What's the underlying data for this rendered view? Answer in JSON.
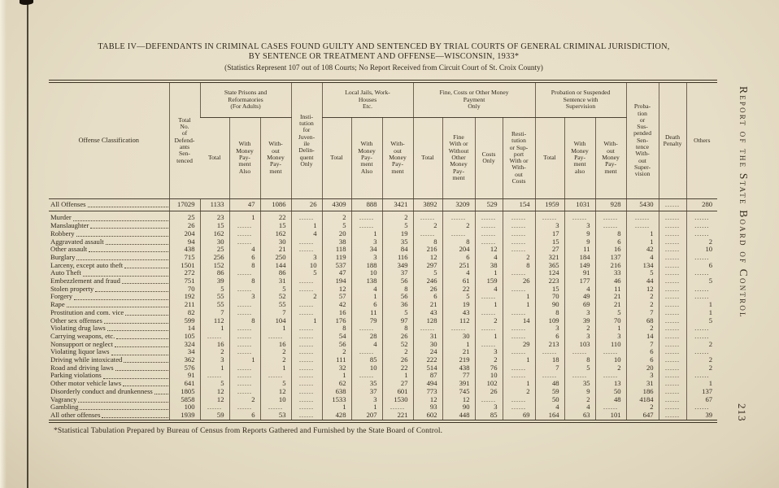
{
  "page": {
    "title_line1": "TABLE IV—DEFENDANTS IN CRIMINAL CASES FOUND GUILTY AND SENTENCED BY TRIAL COURTS OF GENERAL CRIMINAL JURISDICTION,",
    "title_line2": "BY SENTENCE OR TREATMENT AND OFFENSE—WISCONSIN, 1933*",
    "subtitle": "(Statistics Represent 107 out of 108 Courts; No Report Received from Circuit Court of St. Croix County)",
    "footnote": "*Statistical Tabulation Prepared by Bureau of Census from Reports Gathered and Furnished by the State Board of Control.",
    "running_head": "Report of the State Board of Control",
    "page_number": "213"
  },
  "colors": {
    "paper": "#e8dfca",
    "ink": "#32291c",
    "rule": "#4e4433"
  },
  "header": {
    "offense": "Offense Classification",
    "total_no": "Total\nNo.\nof\nDefend-\nants\nSen-\ntenced",
    "group_prisons": "State Prisons and\nReformatories\n(For Adults)",
    "juvenile": "Insti-\ntution\nfor\nJuven-\nile\nDelin-\nquent\nOnly",
    "group_jails": "Local Jails, Work-\nHouses\nEtc.",
    "group_fine": "Fine, Costs or Other Money\nPayment\nOnly",
    "group_probation": "Probation or Suspended\nSentence with\nSupervision",
    "prob_no_supervision": "Proba-\ntion\nor\nSus-\npended\nSen-\ntence\nWith-\nout\nSuper-\nvision",
    "death": "Death\nPenalty",
    "others": "Others",
    "sub": [
      "Total",
      "With\nMoney\nPay-\nment\nAlso",
      "With-\nout\nMoney\nPay-\nment",
      "Total",
      "With\nMoney\nPay-\nment\nAlso",
      "With-\nout\nMoney\nPay-\nment",
      "Total",
      "Fine\nWith or\nWithout\nOther\nMoney\nPay-\nment",
      "Costs\nOnly",
      "Resti-\ntution\nor Sup-\nport\nWith or\nWith-\nout\nCosts",
      "Total",
      "With\nMoney\nPay-\nment\nalso",
      "With-\nout\nMoney\nPay-\nment"
    ]
  },
  "table": {
    "type": "table",
    "empty_marker": "......",
    "totals_row": {
      "label": "All Offenses",
      "values": [
        "17029",
        "1133",
        "47",
        "1086",
        "26",
        "4309",
        "888",
        "3421",
        "3892",
        "3209",
        "529",
        "154",
        "1959",
        "1031",
        "928",
        "5430",
        "",
        "280"
      ]
    },
    "rows": [
      {
        "label": "Murder",
        "values": [
          "25",
          "23",
          "1",
          "22",
          "",
          "2",
          "",
          "2",
          "",
          "",
          "",
          "",
          "",
          "",
          "",
          "",
          "",
          ""
        ]
      },
      {
        "label": "Manslaughter",
        "values": [
          "26",
          "15",
          "",
          "15",
          "1",
          "5",
          "",
          "5",
          "2",
          "2",
          "",
          "",
          "3",
          "3",
          "",
          "",
          "",
          ""
        ]
      },
      {
        "label": "Robbery",
        "values": [
          "204",
          "162",
          "",
          "162",
          "4",
          "20",
          "1",
          "19",
          "",
          "",
          "",
          "",
          "17",
          "9",
          "8",
          "1",
          "",
          ""
        ]
      },
      {
        "label": "Aggravated assault",
        "values": [
          "94",
          "30",
          "",
          "30",
          "",
          "38",
          "3",
          "35",
          "8",
          "8",
          "",
          "",
          "15",
          "9",
          "6",
          "1",
          "",
          "2"
        ]
      },
      {
        "label": "Other assault",
        "values": [
          "438",
          "25",
          "4",
          "21",
          "",
          "118",
          "34",
          "84",
          "216",
          "204",
          "12",
          "",
          "27",
          "11",
          "16",
          "42",
          "",
          "10"
        ]
      },
      {
        "label": "Burglary",
        "values": [
          "715",
          "256",
          "6",
          "250",
          "3",
          "119",
          "3",
          "116",
          "12",
          "6",
          "4",
          "2",
          "321",
          "184",
          "137",
          "4",
          "",
          ""
        ]
      },
      {
        "label": "Larceny, except auto theft",
        "values": [
          "1501",
          "152",
          "8",
          "144",
          "10",
          "537",
          "188",
          "349",
          "297",
          "251",
          "38",
          "8",
          "365",
          "149",
          "216",
          "134",
          "",
          "6"
        ]
      },
      {
        "label": "Auto Theft",
        "values": [
          "272",
          "86",
          "",
          "86",
          "5",
          "47",
          "10",
          "37",
          "5",
          "4",
          "1",
          "",
          "124",
          "91",
          "33",
          "5",
          "",
          ""
        ]
      },
      {
        "label": "Embezzlement and fraud",
        "values": [
          "751",
          "39",
          "8",
          "31",
          "",
          "194",
          "138",
          "56",
          "246",
          "61",
          "159",
          "26",
          "223",
          "177",
          "46",
          "44",
          "",
          "5"
        ]
      },
      {
        "label": "Stolen property",
        "values": [
          "70",
          "5",
          "",
          "5",
          "",
          "12",
          "4",
          "8",
          "26",
          "22",
          "4",
          "",
          "15",
          "4",
          "11",
          "12",
          "",
          ""
        ]
      },
      {
        "label": "Forgery",
        "values": [
          "192",
          "55",
          "3",
          "52",
          "2",
          "57",
          "1",
          "56",
          "6",
          "5",
          "",
          "1",
          "70",
          "49",
          "21",
          "2",
          "",
          ""
        ]
      },
      {
        "label": "Rape",
        "values": [
          "211",
          "55",
          "",
          "55",
          "",
          "42",
          "6",
          "36",
          "21",
          "19",
          "1",
          "1",
          "90",
          "69",
          "21",
          "2",
          "",
          "1"
        ]
      },
      {
        "label": "Prostitution and com. vice",
        "values": [
          "82",
          "7",
          "",
          "7",
          "",
          "16",
          "11",
          "5",
          "43",
          "43",
          "",
          "",
          "8",
          "3",
          "5",
          "7",
          "",
          "1"
        ]
      },
      {
        "label": "Other sex offenses",
        "values": [
          "599",
          "112",
          "8",
          "104",
          "1",
          "176",
          "79",
          "97",
          "128",
          "112",
          "2",
          "14",
          "109",
          "39",
          "70",
          "68",
          "",
          "5"
        ]
      },
      {
        "label": "Violating drug laws",
        "values": [
          "14",
          "1",
          "",
          "1",
          "",
          "8",
          "",
          "8",
          "",
          "",
          "",
          "",
          "3",
          "2",
          "1",
          "2",
          "",
          ""
        ]
      },
      {
        "label": "Carrying weapons, etc.",
        "values": [
          "105",
          "",
          "",
          "",
          "",
          "54",
          "28",
          "26",
          "31",
          "30",
          "1",
          "",
          "6",
          "3",
          "3",
          "14",
          "",
          ""
        ]
      },
      {
        "label": "Nonsupport or neglect",
        "values": [
          "324",
          "16",
          "",
          "16",
          "",
          "56",
          "4",
          "52",
          "30",
          "1",
          "",
          "29",
          "213",
          "103",
          "110",
          "7",
          "",
          "2"
        ]
      },
      {
        "label": "Violating liquor laws",
        "values": [
          "34",
          "2",
          "",
          "2",
          "",
          "2",
          "",
          "2",
          "24",
          "21",
          "3",
          "",
          "",
          "",
          "",
          "6",
          "",
          ""
        ]
      },
      {
        "label": "Driving while intoxicated",
        "values": [
          "362",
          "3",
          "1",
          "2",
          "",
          "111",
          "85",
          "26",
          "222",
          "219",
          "2",
          "1",
          "18",
          "8",
          "10",
          "6",
          "",
          "2"
        ]
      },
      {
        "label": "Road and driving laws",
        "values": [
          "576",
          "1",
          "",
          "1",
          "",
          "32",
          "10",
          "22",
          "514",
          "438",
          "76",
          "",
          "7",
          "5",
          "2",
          "20",
          "",
          "2"
        ]
      },
      {
        "label": "Parking violations",
        "values": [
          "91",
          "",
          "",
          "",
          "",
          "1",
          "",
          "1",
          "87",
          "77",
          "10",
          "",
          "",
          "",
          "",
          "3",
          "",
          ""
        ]
      },
      {
        "label": "Other motor vehicle laws",
        "values": [
          "641",
          "5",
          "",
          "5",
          "",
          "62",
          "35",
          "27",
          "494",
          "391",
          "102",
          "1",
          "48",
          "35",
          "13",
          "31",
          "",
          "1"
        ]
      },
      {
        "label": "Disorderly conduct and drunkenness",
        "values": [
          "1805",
          "12",
          "",
          "12",
          "",
          "638",
          "37",
          "601",
          "773",
          "745",
          "26",
          "2",
          "59",
          "9",
          "50",
          "186",
          "",
          "137"
        ]
      },
      {
        "label": "Vagrancy",
        "values": [
          "5858",
          "12",
          "2",
          "10",
          "",
          "1533",
          "3",
          "1530",
          "12",
          "12",
          "",
          "",
          "50",
          "2",
          "48",
          "4184",
          "",
          "67"
        ]
      },
      {
        "label": "Gambling",
        "values": [
          "100",
          "",
          "",
          "",
          "",
          "1",
          "1",
          "",
          "93",
          "90",
          "3",
          "",
          "4",
          "4",
          "",
          "2",
          "",
          ""
        ]
      },
      {
        "label": "All other offenses",
        "values": [
          "1939",
          "59",
          "6",
          "53",
          "",
          "428",
          "207",
          "221",
          "602",
          "448",
          "85",
          "69",
          "164",
          "63",
          "101",
          "647",
          "",
          "39"
        ]
      }
    ]
  }
}
